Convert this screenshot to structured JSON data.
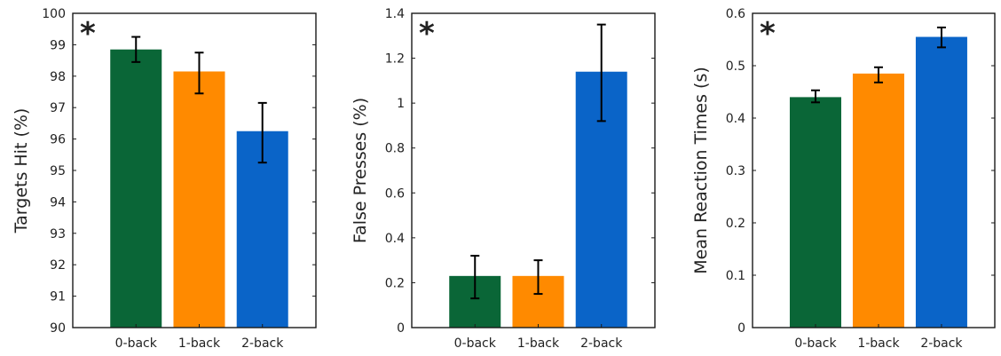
{
  "chart_data": [
    {
      "type": "bar",
      "categories": [
        "0-back",
        "1-back",
        "2-back"
      ],
      "values": [
        98.85,
        98.15,
        96.25
      ],
      "errors": [
        [
          98.45,
          99.25
        ],
        [
          97.45,
          98.75
        ],
        [
          95.25,
          97.15
        ]
      ],
      "colors": [
        "#0a6637",
        "#ff8a00",
        "#0a64c8"
      ],
      "ylabel": "Targets Hit (%)",
      "ylim": [
        90,
        100
      ],
      "yticks": [
        90,
        91,
        92,
        93,
        94,
        95,
        96,
        97,
        98,
        99,
        100
      ],
      "yticklabels": [
        "90",
        "91",
        "92",
        "93",
        "94",
        "95",
        "96",
        "97",
        "98",
        "99",
        "100"
      ],
      "annotation": "*"
    },
    {
      "type": "bar",
      "categories": [
        "0-back",
        "1-back",
        "2-back"
      ],
      "values": [
        0.23,
        0.23,
        1.14
      ],
      "errors": [
        [
          0.13,
          0.32
        ],
        [
          0.15,
          0.3
        ],
        [
          0.92,
          1.35
        ]
      ],
      "colors": [
        "#0a6637",
        "#ff8a00",
        "#0a64c8"
      ],
      "ylabel": "False Presses (%)",
      "ylim": [
        0,
        1.4
      ],
      "yticks": [
        0,
        0.2,
        0.4,
        0.6,
        0.8,
        1,
        1.2,
        1.4
      ],
      "yticklabels": [
        "0",
        "0.2",
        "0.4",
        "0.6",
        "0.8",
        "1",
        "1.2",
        "1.4"
      ],
      "annotation": "*"
    },
    {
      "type": "bar",
      "categories": [
        "0-back",
        "1-back",
        "2-back"
      ],
      "values": [
        0.44,
        0.485,
        0.555
      ],
      "errors": [
        [
          0.43,
          0.453
        ],
        [
          0.468,
          0.497
        ],
        [
          0.535,
          0.573
        ]
      ],
      "colors": [
        "#0a6637",
        "#ff8a00",
        "#0a64c8"
      ],
      "ylabel": "Mean Reaction Times (s)",
      "ylim": [
        0,
        0.6
      ],
      "yticks": [
        0,
        0.1,
        0.2,
        0.3,
        0.4,
        0.5,
        0.6
      ],
      "yticklabels": [
        "0",
        "0.1",
        "0.2",
        "0.3",
        "0.4",
        "0.5",
        "0.6"
      ],
      "annotation": "*"
    }
  ]
}
